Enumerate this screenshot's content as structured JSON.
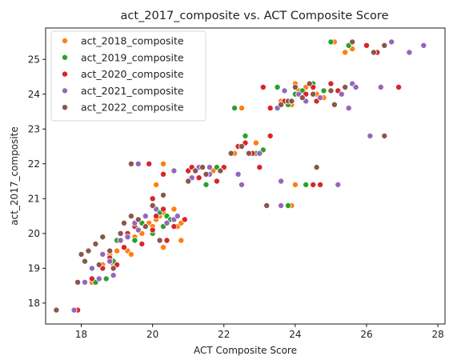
{
  "chart_data": {
    "type": "scatter",
    "title": "act_2017_composite vs. ACT Composite Score",
    "xlabel": "ACT Composite Score",
    "ylabel": "act_2017_composite",
    "xlim": [
      17.0,
      28.2
    ],
    "ylim": [
      17.4,
      25.9
    ],
    "xticks": [
      18,
      20,
      22,
      24,
      26,
      28
    ],
    "yticks": [
      18,
      19,
      20,
      21,
      22,
      23,
      24,
      25
    ],
    "grid": false,
    "legend_position": "top-left",
    "series": [
      {
        "name": "act_2018_composite",
        "color": "#ff7f0e",
        "points": [
          [
            17.8,
            17.8
          ],
          [
            18.3,
            18.6
          ],
          [
            18.5,
            18.7
          ],
          [
            18.6,
            19.1
          ],
          [
            18.8,
            19.4
          ],
          [
            18.9,
            19.1
          ],
          [
            19.0,
            19.5
          ],
          [
            19.1,
            19.8
          ],
          [
            19.3,
            19.5
          ],
          [
            19.4,
            19.4
          ],
          [
            19.5,
            19.9
          ],
          [
            19.7,
            20.0
          ],
          [
            19.9,
            20.3
          ],
          [
            20.0,
            20.2
          ],
          [
            20.1,
            20.4
          ],
          [
            20.2,
            20.5
          ],
          [
            20.3,
            20.6
          ],
          [
            20.5,
            20.4
          ],
          [
            20.6,
            20.7
          ],
          [
            20.7,
            20.2
          ],
          [
            20.8,
            20.3
          ],
          [
            20.8,
            19.8
          ],
          [
            20.1,
            21.4
          ],
          [
            20.3,
            22.0
          ],
          [
            19.9,
            22.0
          ],
          [
            21.1,
            21.9
          ],
          [
            21.5,
            21.7
          ],
          [
            21.7,
            21.8
          ],
          [
            22.3,
            22.3
          ],
          [
            22.5,
            23.6
          ],
          [
            22.6,
            22.6
          ],
          [
            22.8,
            22.3
          ],
          [
            22.9,
            22.6
          ],
          [
            23.5,
            24.2
          ],
          [
            23.6,
            23.8
          ],
          [
            23.9,
            23.7
          ],
          [
            24.0,
            24.3
          ],
          [
            24.1,
            24.1
          ],
          [
            24.3,
            24.2
          ],
          [
            24.6,
            24.0
          ],
          [
            24.8,
            23.9
          ],
          [
            25.0,
            24.1
          ],
          [
            25.1,
            25.5
          ],
          [
            25.4,
            25.2
          ],
          [
            25.6,
            25.3
          ],
          [
            24.0,
            21.4
          ],
          [
            23.9,
            20.8
          ],
          [
            20.3,
            19.6
          ]
        ]
      },
      {
        "name": "act_2019_composite",
        "color": "#2ca02c",
        "points": [
          [
            18.4,
            18.6
          ],
          [
            18.7,
            18.7
          ],
          [
            18.9,
            19.2
          ],
          [
            19.0,
            19.8
          ],
          [
            19.2,
            19.6
          ],
          [
            19.5,
            19.8
          ],
          [
            19.7,
            20.3
          ],
          [
            19.8,
            20.2
          ],
          [
            20.0,
            20.0
          ],
          [
            20.2,
            20.6
          ],
          [
            20.4,
            20.5
          ],
          [
            20.5,
            20.4
          ],
          [
            20.3,
            20.2
          ],
          [
            21.3,
            21.6
          ],
          [
            21.5,
            21.4
          ],
          [
            21.8,
            21.9
          ],
          [
            22.0,
            21.9
          ],
          [
            22.3,
            23.6
          ],
          [
            22.6,
            22.8
          ],
          [
            23.1,
            22.4
          ],
          [
            23.5,
            24.2
          ],
          [
            23.7,
            23.8
          ],
          [
            23.8,
            23.7
          ],
          [
            24.0,
            24.0
          ],
          [
            24.2,
            24.1
          ],
          [
            24.3,
            21.4
          ],
          [
            24.5,
            24.3
          ],
          [
            24.8,
            24.1
          ],
          [
            25.0,
            25.5
          ],
          [
            25.5,
            25.4
          ],
          [
            23.8,
            20.8
          ],
          [
            22.9,
            22.3
          ]
        ]
      },
      {
        "name": "act_2020_composite",
        "color": "#d62728",
        "points": [
          [
            17.9,
            17.8
          ],
          [
            18.3,
            18.7
          ],
          [
            18.6,
            19.0
          ],
          [
            18.8,
            19.3
          ],
          [
            19.0,
            19.1
          ],
          [
            19.2,
            19.6
          ],
          [
            19.3,
            20.0
          ],
          [
            19.5,
            20.2
          ],
          [
            19.7,
            19.7
          ],
          [
            20.0,
            20.1
          ],
          [
            20.1,
            20.5
          ],
          [
            20.3,
            20.7
          ],
          [
            20.4,
            19.8
          ],
          [
            20.6,
            20.2
          ],
          [
            20.9,
            20.4
          ],
          [
            20.0,
            21.0
          ],
          [
            20.3,
            21.7
          ],
          [
            19.9,
            22.0
          ],
          [
            21.0,
            21.8
          ],
          [
            21.1,
            21.9
          ],
          [
            21.3,
            21.6
          ],
          [
            21.8,
            21.5
          ],
          [
            22.0,
            21.9
          ],
          [
            22.4,
            22.5
          ],
          [
            22.6,
            22.6
          ],
          [
            22.7,
            22.3
          ],
          [
            22.8,
            22.3
          ],
          [
            23.0,
            21.9
          ],
          [
            23.3,
            22.8
          ],
          [
            23.1,
            24.2
          ],
          [
            23.3,
            23.6
          ],
          [
            23.7,
            23.8
          ],
          [
            23.9,
            23.8
          ],
          [
            24.3,
            24.0
          ],
          [
            24.5,
            24.2
          ],
          [
            24.6,
            23.8
          ],
          [
            25.0,
            24.3
          ],
          [
            25.2,
            24.1
          ],
          [
            25.4,
            24.2
          ],
          [
            26.0,
            25.4
          ],
          [
            26.3,
            25.2
          ],
          [
            26.9,
            24.2
          ],
          [
            24.5,
            21.4
          ],
          [
            24.7,
            21.4
          ],
          [
            20.2,
            19.8
          ]
        ]
      },
      {
        "name": "act_2021_composite",
        "color": "#9467bd",
        "points": [
          [
            17.8,
            17.8
          ],
          [
            18.1,
            18.6
          ],
          [
            18.3,
            19.0
          ],
          [
            18.5,
            18.7
          ],
          [
            18.6,
            19.4
          ],
          [
            18.8,
            19.2
          ],
          [
            18.9,
            18.8
          ],
          [
            19.1,
            19.8
          ],
          [
            19.3,
            19.9
          ],
          [
            19.5,
            20.3
          ],
          [
            19.6,
            20.1
          ],
          [
            19.8,
            20.5
          ],
          [
            20.1,
            20.7
          ],
          [
            20.4,
            20.3
          ],
          [
            20.6,
            20.4
          ],
          [
            20.7,
            20.5
          ],
          [
            19.6,
            22.0
          ],
          [
            20.6,
            21.8
          ],
          [
            21.1,
            21.6
          ],
          [
            21.3,
            21.9
          ],
          [
            21.6,
            21.9
          ],
          [
            21.6,
            21.7
          ],
          [
            22.4,
            21.7
          ],
          [
            22.5,
            21.4
          ],
          [
            23.0,
            22.3
          ],
          [
            23.5,
            23.6
          ],
          [
            23.6,
            21.5
          ],
          [
            23.6,
            20.8
          ],
          [
            24.1,
            24.0
          ],
          [
            24.3,
            23.8
          ],
          [
            24.7,
            23.9
          ],
          [
            25.0,
            24.1
          ],
          [
            25.2,
            21.4
          ],
          [
            25.3,
            24.0
          ],
          [
            25.5,
            23.6
          ],
          [
            25.6,
            24.3
          ],
          [
            25.7,
            24.2
          ],
          [
            26.1,
            22.8
          ],
          [
            26.4,
            24.2
          ],
          [
            26.7,
            25.5
          ],
          [
            27.2,
            25.2
          ],
          [
            27.6,
            25.4
          ],
          [
            23.7,
            24.1
          ]
        ]
      },
      {
        "name": "act_2022_composite",
        "color": "#8c564b",
        "points": [
          [
            17.3,
            17.8
          ],
          [
            17.9,
            18.6
          ],
          [
            18.0,
            19.4
          ],
          [
            18.1,
            19.2
          ],
          [
            18.2,
            19.5
          ],
          [
            18.4,
            19.7
          ],
          [
            18.5,
            19.1
          ],
          [
            18.6,
            19.9
          ],
          [
            18.8,
            19.5
          ],
          [
            18.9,
            19.0
          ],
          [
            19.1,
            20.0
          ],
          [
            19.2,
            20.3
          ],
          [
            19.4,
            20.5
          ],
          [
            19.4,
            22.0
          ],
          [
            19.6,
            20.4
          ],
          [
            19.8,
            20.2
          ],
          [
            20.0,
            20.8
          ],
          [
            20.2,
            19.8
          ],
          [
            20.3,
            21.1
          ],
          [
            21.0,
            21.5
          ],
          [
            21.2,
            21.8
          ],
          [
            21.4,
            21.9
          ],
          [
            21.5,
            21.7
          ],
          [
            21.9,
            21.8
          ],
          [
            22.2,
            22.3
          ],
          [
            22.5,
            22.5
          ],
          [
            22.7,
            22.3
          ],
          [
            23.2,
            20.8
          ],
          [
            23.6,
            23.7
          ],
          [
            23.8,
            23.8
          ],
          [
            24.0,
            24.2
          ],
          [
            24.2,
            23.9
          ],
          [
            24.4,
            24.3
          ],
          [
            24.5,
            24.0
          ],
          [
            24.6,
            21.9
          ],
          [
            25.0,
            24.1
          ],
          [
            25.1,
            23.7
          ],
          [
            25.4,
            24.2
          ],
          [
            25.6,
            25.5
          ],
          [
            26.2,
            25.2
          ],
          [
            26.5,
            22.8
          ],
          [
            26.5,
            25.4
          ],
          [
            23.9,
            23.8
          ]
        ]
      }
    ]
  }
}
